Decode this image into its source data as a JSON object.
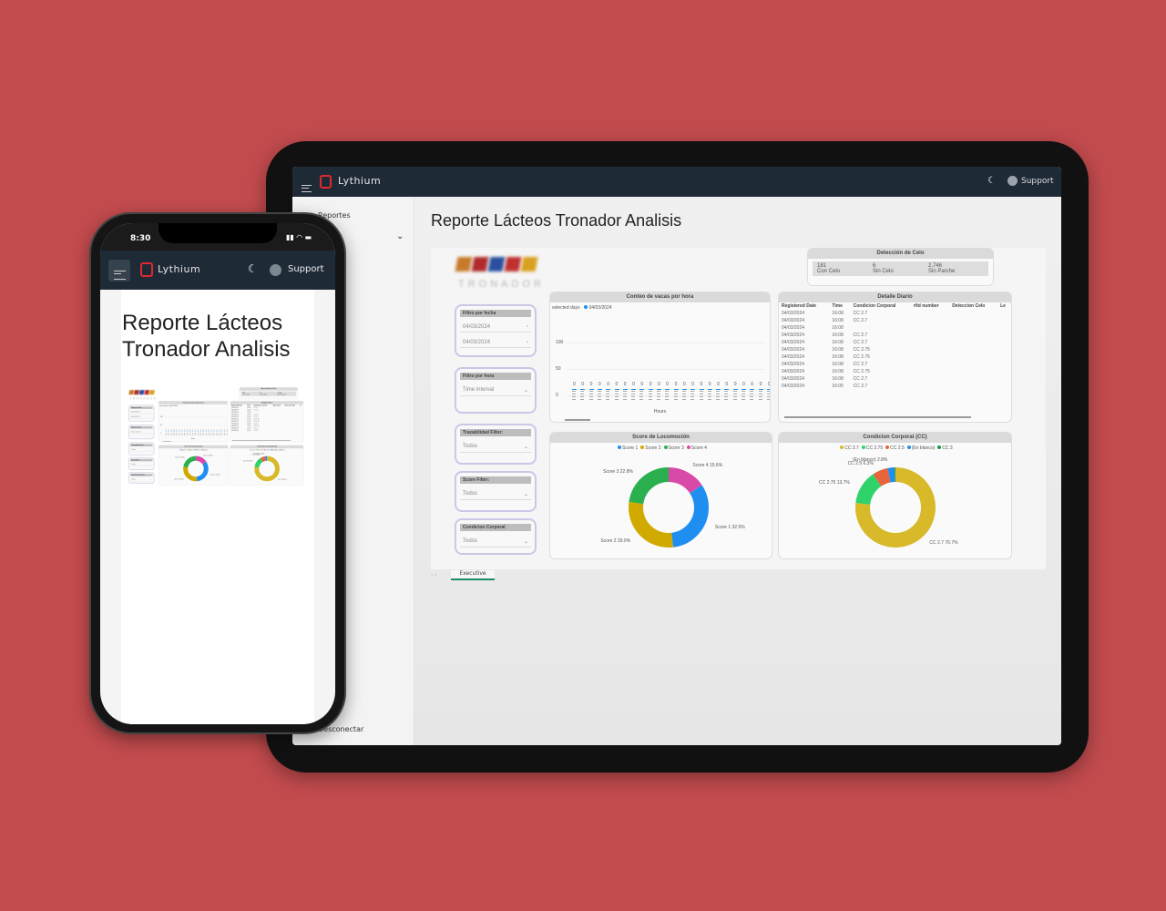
{
  "app": {
    "brand": "Lythium",
    "support_label": "Support",
    "theme_icon": "moon-icon",
    "user_icon": "user-circle-icon"
  },
  "phone_status": {
    "time": "8:30"
  },
  "sidebar": {
    "items": [
      {
        "label": "Reportes"
      }
    ],
    "footer": "Desconectar"
  },
  "page": {
    "title": "Reporte Lácteos Tronador Analisis"
  },
  "report": {
    "logo_text": "TRONADOR",
    "celo": {
      "title": "Detección de Celo",
      "values": [
        {
          "value": "181",
          "label": "Con Celo"
        },
        {
          "value": "6",
          "label": "Sin Celo"
        },
        {
          "value": "2,746",
          "label": "Sin Parche"
        }
      ]
    },
    "filters": [
      {
        "label": "Filtro por fecha",
        "values": [
          "04/03/2024",
          "04/03/2024"
        ]
      },
      {
        "label": "Filtro por hora",
        "values": [
          "Time interval"
        ]
      },
      {
        "label": "Trazabilidad Filter:",
        "values": [
          "Todos"
        ]
      },
      {
        "label": "Score Filter:",
        "values": [
          "Todos"
        ]
      },
      {
        "label": "Condicion Corporal",
        "values": [
          "Todos"
        ]
      }
    ],
    "conteo": {
      "title": "Conteo de vacas por hora",
      "legend_label": "selected days",
      "legend_item": "04/03/2024",
      "xlabel": "Hours",
      "yticks": [
        "100",
        "50",
        "0"
      ]
    },
    "detalle": {
      "title": "Detalle Diario",
      "columns": [
        "Registered Date",
        "Time",
        "Condicion Corporal",
        "rfid number",
        "Deteccion Celo",
        "Le"
      ],
      "rows": [
        [
          "04/03/2024",
          "16:08",
          "CC 2.7"
        ],
        [
          "04/03/2024",
          "16:08",
          "CC 2.7"
        ],
        [
          "04/03/2024",
          "16:08",
          ""
        ],
        [
          "04/03/2024",
          "16:08",
          "CC 2.7"
        ],
        [
          "04/03/2024",
          "16:08",
          "CC 2.7"
        ],
        [
          "04/03/2024",
          "16:08",
          "CC 2.75"
        ],
        [
          "04/03/2024",
          "16:08",
          "CC 2.75"
        ],
        [
          "04/03/2024",
          "16:08",
          "CC 2.7"
        ],
        [
          "04/03/2024",
          "16:08",
          "CC 2.75"
        ],
        [
          "04/03/2024",
          "16:08",
          "CC 2.7"
        ],
        [
          "04/03/2024",
          "16:05",
          "CC 2.7"
        ]
      ]
    },
    "tabs": [
      {
        "label": "Executive",
        "active": true
      }
    ]
  },
  "chart_data": [
    {
      "type": "bar",
      "title": "Conteo de vacas por hora",
      "xlabel": "Hours",
      "ylim": [
        0,
        100
      ],
      "series": [
        {
          "name": "04/03/2024",
          "values": [
            0,
            0,
            0,
            0,
            0,
            0,
            0,
            0,
            0,
            0,
            0,
            0,
            0,
            0,
            0,
            0,
            0,
            0,
            0,
            0,
            0,
            0,
            0,
            0
          ]
        }
      ]
    },
    {
      "type": "pie",
      "title": "Score de Locomoción",
      "labels": [
        "Score 1",
        "Score 2",
        "Score 3",
        "Score 4"
      ],
      "values": [
        32.5,
        29.0,
        22.8,
        15.6
      ],
      "colors": [
        "#1e8ff0",
        "#d1aa00",
        "#2ab04f",
        "#d94aa8"
      ],
      "order": [
        3,
        0,
        1,
        2
      ]
    },
    {
      "type": "pie",
      "title": "Condicion Corporal (CC)",
      "labels": [
        "CC 2.7",
        "CC 2.75",
        "CC 2.5",
        "(En blanco)",
        "CC 3"
      ],
      "values": [
        76.7,
        13.7,
        6.3,
        2.8,
        0.5
      ],
      "colors": [
        "#d8b92a",
        "#2fd36a",
        "#e8643a",
        "#1e8ff0",
        "#1a9a3a"
      ]
    }
  ]
}
